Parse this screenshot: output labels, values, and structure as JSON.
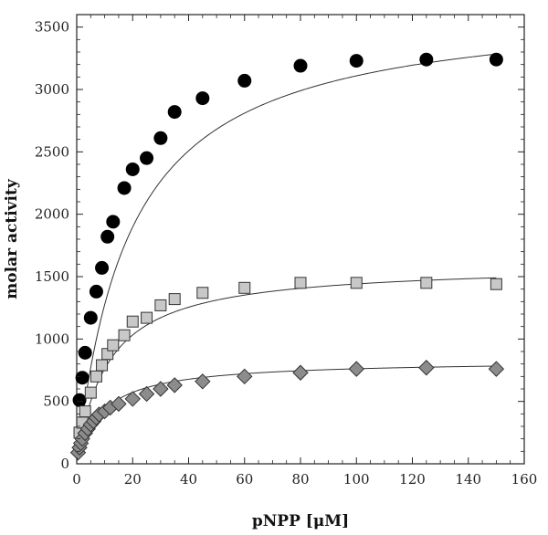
{
  "chart_data": {
    "type": "scatter",
    "xlabel": "pNPP [μM]",
    "ylabel": "molar activity",
    "xlim": [
      0,
      160
    ],
    "ylim": [
      0,
      3600
    ],
    "xticks": [
      0,
      20,
      40,
      60,
      80,
      100,
      120,
      140,
      160
    ],
    "yticks": [
      0,
      500,
      1000,
      1500,
      2000,
      2500,
      3000,
      3500
    ],
    "grid": false,
    "legend": "none",
    "series": [
      {
        "marker": "circle",
        "fill": "#000000",
        "stroke": "#000000",
        "x": [
          1,
          2,
          3,
          5,
          7,
          9,
          11,
          13,
          17,
          20,
          25,
          30,
          35,
          45,
          60,
          80,
          100,
          125,
          150
        ],
        "y": [
          510,
          690,
          890,
          1170,
          1380,
          1570,
          1820,
          1940,
          2210,
          2360,
          2450,
          2610,
          2820,
          2930,
          3070,
          3190,
          3230,
          3240,
          3240
        ],
        "fit_vmax": 3700,
        "fit_km": 19
      },
      {
        "marker": "square",
        "fill": "#c8c8c8",
        "stroke": "#333333",
        "x": [
          1,
          2,
          3,
          5,
          7,
          9,
          11,
          13,
          17,
          20,
          25,
          30,
          35,
          45,
          60,
          80,
          100,
          125,
          150
        ],
        "y": [
          250,
          330,
          420,
          570,
          700,
          790,
          880,
          950,
          1030,
          1140,
          1170,
          1270,
          1320,
          1370,
          1410,
          1450,
          1450,
          1450,
          1440
        ],
        "fit_vmax": 1600,
        "fit_km": 11
      },
      {
        "marker": "diamond",
        "fill": "#8c8c8c",
        "stroke": "#333333",
        "x": [
          0.5,
          1,
          1.5,
          2,
          3,
          4,
          5,
          6,
          7,
          8,
          10,
          12,
          15,
          20,
          25,
          30,
          35,
          45,
          60,
          80,
          100,
          125,
          150
        ],
        "y": [
          90,
          130,
          165,
          200,
          245,
          280,
          315,
          340,
          370,
          395,
          420,
          450,
          480,
          520,
          560,
          600,
          630,
          660,
          700,
          730,
          760,
          770,
          760
        ],
        "fit_vmax": 830,
        "fit_km": 9
      }
    ]
  }
}
